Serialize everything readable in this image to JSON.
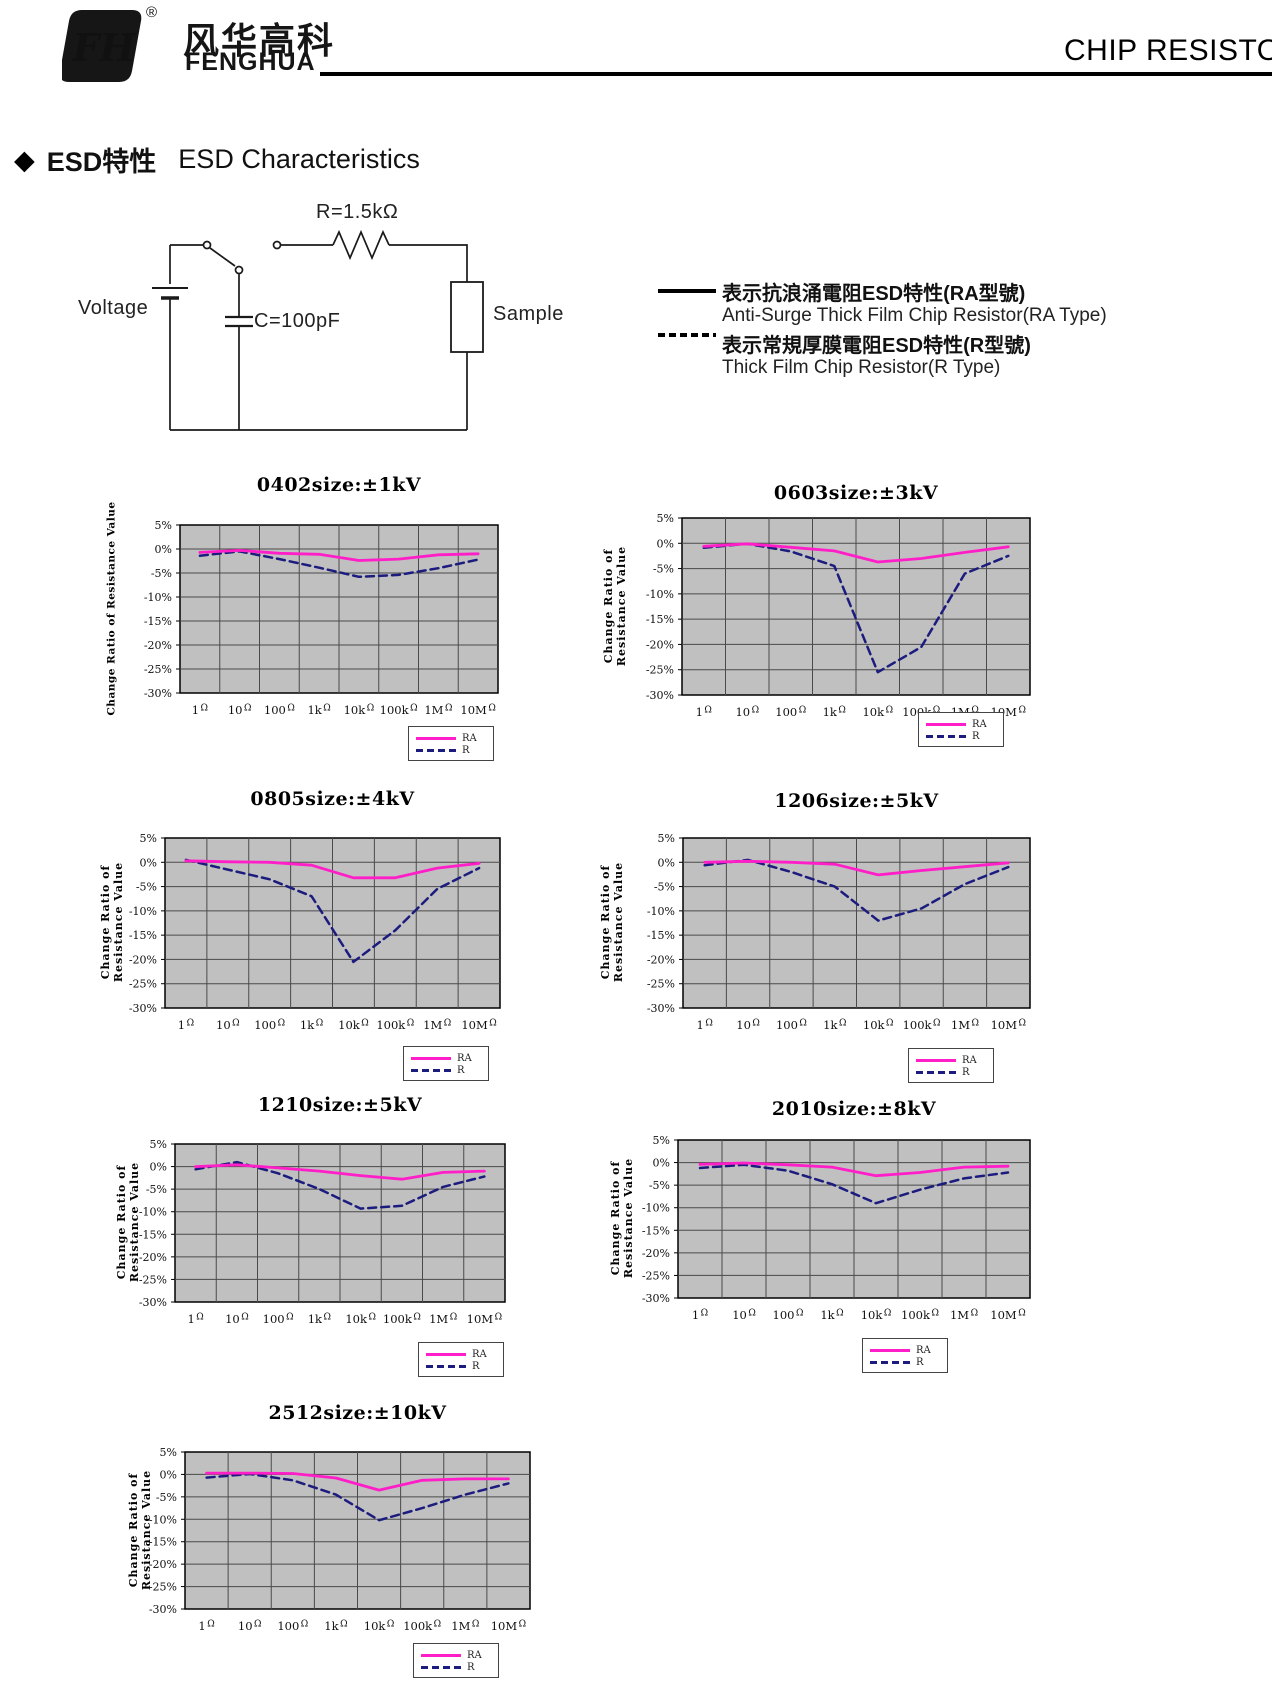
{
  "header": {
    "brand_cn": "风华高科",
    "brand_en": "FENGHUA",
    "logo_glyph": "FH",
    "registered_mark": "®",
    "page_title": "CHIP RESISTO"
  },
  "section": {
    "bullet": "◆",
    "title_cn": "ESD特性",
    "title_en": "ESD Characteristics"
  },
  "circuit": {
    "resistor_label": "R=1.5kΩ",
    "capacitor_label": "C=100pF",
    "voltage_label": "Voltage",
    "sample_label": "Sample"
  },
  "legend_note": {
    "solid_cn": "表示抗浪涌電阻ESD特性(RA型號)",
    "solid_en": "Anti-Surge Thick Film Chip Resistor(RA Type)",
    "dashed_cn": "表示常規厚膜電阻ESD特性(R型號)",
    "dashed_en": "Thick Film Chip Resistor(R Type)"
  },
  "colors": {
    "ra_line": "#ff1ec8",
    "r_line": "#1c1c7e",
    "plot_bg": "#c0c0c0",
    "grid": "#4a4a4a",
    "frame": "#000000"
  },
  "chart_data": [
    {
      "id": "0402",
      "type": "line",
      "title": "0402size:±1kV",
      "ylabel_lines": [
        "Change Ratio of  Resistance Value"
      ],
      "categories": [
        "1Ω",
        "10Ω",
        "100Ω",
        "1kΩ",
        "10kΩ",
        "100kΩ",
        "1MΩ",
        "10MΩ"
      ],
      "yticks": [
        "5%",
        "0%",
        "-5%",
        "-10%",
        "-15%",
        "-20%",
        "-25%",
        "-30%"
      ],
      "ylim": [
        -30,
        5
      ],
      "grid": true,
      "legend_position": "bottom-right",
      "series": [
        {
          "name": "RA",
          "style": "solid",
          "values": [
            -0.7,
            -0.3,
            -0.9,
            -1.1,
            -2.4,
            -2.1,
            -1.2,
            -1.0
          ]
        },
        {
          "name": "R",
          "style": "dashed",
          "values": [
            -1.4,
            -0.5,
            -2.1,
            -3.9,
            -5.8,
            -5.4,
            -4.0,
            -2.2
          ]
        }
      ]
    },
    {
      "id": "0603",
      "type": "line",
      "title": "0603size:±3kV",
      "ylabel_lines": [
        "Change Ratio of",
        "Resistance Value"
      ],
      "categories": [
        "1Ω",
        "10Ω",
        "100Ω",
        "1kΩ",
        "10kΩ",
        "100kΩ",
        "1MΩ",
        "10MΩ"
      ],
      "yticks": [
        "5%",
        "0%",
        "-5%",
        "-10%",
        "-15%",
        "-20%",
        "-25%",
        "-30%"
      ],
      "ylim": [
        -30,
        5
      ],
      "grid": true,
      "legend_position": "bottom-right",
      "series": [
        {
          "name": "RA",
          "style": "solid",
          "values": [
            -0.6,
            -0.1,
            -0.8,
            -1.5,
            -3.7,
            -3.0,
            -1.8,
            -0.7
          ]
        },
        {
          "name": "R",
          "style": "dashed",
          "values": [
            -0.9,
            -0.1,
            -1.6,
            -4.5,
            -25.5,
            -20.5,
            -6.0,
            -2.5
          ]
        }
      ]
    },
    {
      "id": "0805",
      "type": "line",
      "title": "0805size:±4kV",
      "ylabel_lines": [
        "Change Ratio of",
        "Resistance Value"
      ],
      "categories": [
        "1Ω",
        "10Ω",
        "100Ω",
        "1kΩ",
        "10kΩ",
        "100kΩ",
        "1MΩ",
        "10MΩ"
      ],
      "yticks": [
        "5%",
        "0%",
        "-5%",
        "-10%",
        "-15%",
        "-20%",
        "-25%",
        "-30%"
      ],
      "ylim": [
        -30,
        5
      ],
      "grid": true,
      "legend_position": "bottom-right",
      "series": [
        {
          "name": "RA",
          "style": "solid",
          "values": [
            0.3,
            0.1,
            0.0,
            -0.6,
            -3.2,
            -3.2,
            -1.2,
            -0.2
          ]
        },
        {
          "name": "R",
          "style": "dashed",
          "values": [
            0.5,
            -1.5,
            -3.5,
            -7.0,
            -20.5,
            -14.0,
            -5.5,
            -1.2
          ]
        }
      ]
    },
    {
      "id": "1206",
      "type": "line",
      "title": "1206size:±5kV",
      "ylabel_lines": [
        "Change Ratio of",
        "Resistance Value"
      ],
      "categories": [
        "1Ω",
        "10Ω",
        "100Ω",
        "1kΩ",
        "10kΩ",
        "100kΩ",
        "1MΩ",
        "10MΩ"
      ],
      "yticks": [
        "5%",
        "0%",
        "-5%",
        "-10%",
        "-15%",
        "-20%",
        "-25%",
        "-30%"
      ],
      "ylim": [
        -30,
        5
      ],
      "grid": true,
      "legend_position": "bottom-right",
      "series": [
        {
          "name": "RA",
          "style": "solid",
          "values": [
            0.0,
            0.2,
            0.0,
            -0.4,
            -2.6,
            -1.7,
            -0.9,
            -0.1
          ]
        },
        {
          "name": "R",
          "style": "dashed",
          "values": [
            -0.6,
            0.5,
            -2.0,
            -5.0,
            -12.0,
            -9.5,
            -4.5,
            -1.0
          ]
        }
      ]
    },
    {
      "id": "1210",
      "type": "line",
      "title": "1210size:±5kV",
      "ylabel_lines": [
        "Change Ratio of",
        "Resistance Value"
      ],
      "categories": [
        "1Ω",
        "10Ω",
        "100Ω",
        "1kΩ",
        "10kΩ",
        "100kΩ",
        "1MΩ",
        "10MΩ"
      ],
      "yticks": [
        "5%",
        "0%",
        "-5%",
        "-10%",
        "-15%",
        "-20%",
        "-25%",
        "-30%"
      ],
      "ylim": [
        -30,
        5
      ],
      "grid": true,
      "legend_position": "bottom-right",
      "series": [
        {
          "name": "RA",
          "style": "solid",
          "values": [
            0.0,
            0.4,
            -0.3,
            -1.0,
            -2.0,
            -2.8,
            -1.3,
            -1.0
          ]
        },
        {
          "name": "R",
          "style": "dashed",
          "values": [
            -0.6,
            1.0,
            -1.5,
            -5.0,
            -9.3,
            -8.7,
            -4.5,
            -2.2
          ]
        }
      ]
    },
    {
      "id": "2010",
      "type": "line",
      "title": "2010size:±8kV",
      "ylabel_lines": [
        "Change Ratio of",
        "Resistance Value"
      ],
      "categories": [
        "1Ω",
        "10Ω",
        "100Ω",
        "1kΩ",
        "10kΩ",
        "100kΩ",
        "1MΩ",
        "10MΩ"
      ],
      "yticks": [
        "5%",
        "0%",
        "-5%",
        "-10%",
        "-15%",
        "-20%",
        "-25%",
        "-30%"
      ],
      "ylim": [
        -30,
        5
      ],
      "grid": true,
      "legend_position": "bottom-right",
      "series": [
        {
          "name": "RA",
          "style": "solid",
          "values": [
            -0.4,
            -0.1,
            -0.5,
            -1.0,
            -2.9,
            -2.2,
            -1.0,
            -0.8
          ]
        },
        {
          "name": "R",
          "style": "dashed",
          "values": [
            -1.2,
            -0.5,
            -1.8,
            -4.8,
            -9.0,
            -6.0,
            -3.5,
            -2.2
          ]
        }
      ]
    },
    {
      "id": "2512",
      "type": "line",
      "title": "2512size:±10kV",
      "ylabel_lines": [
        "Change Ratio of",
        "Resistance Value"
      ],
      "categories": [
        "1Ω",
        "10Ω",
        "100Ω",
        "1kΩ",
        "10kΩ",
        "100kΩ",
        "1MΩ",
        "10MΩ"
      ],
      "yticks": [
        "5%",
        "0%",
        "-5%",
        "-10%",
        "-15%",
        "-20%",
        "-25%",
        "-30%"
      ],
      "ylim": [
        -30,
        5
      ],
      "grid": true,
      "legend_position": "bottom-right",
      "series": [
        {
          "name": "RA",
          "style": "solid",
          "values": [
            0.3,
            0.3,
            0.2,
            -0.8,
            -3.5,
            -1.3,
            -1.0,
            -1.0
          ]
        },
        {
          "name": "R",
          "style": "dashed",
          "values": [
            -0.7,
            0.1,
            -1.3,
            -4.5,
            -10.2,
            -7.5,
            -4.5,
            -2.0
          ]
        }
      ]
    }
  ]
}
